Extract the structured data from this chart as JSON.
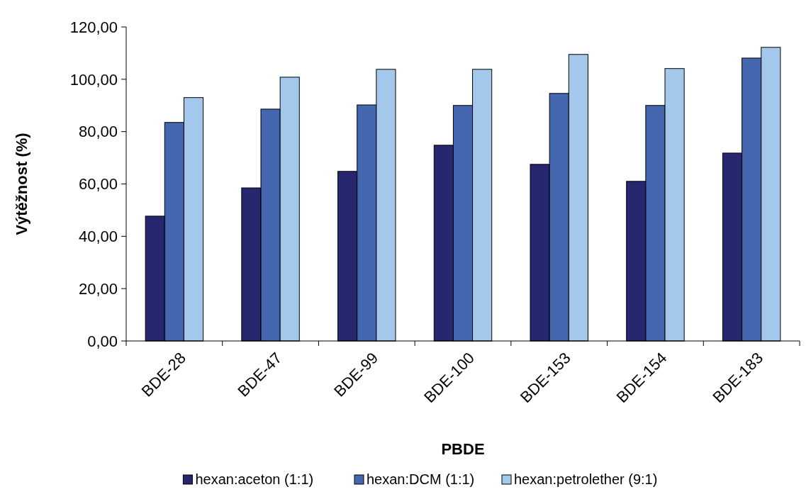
{
  "chart_data": {
    "type": "bar",
    "xlabel": "PBDE",
    "ylabel": "Výtěžnost (%)",
    "categories": [
      "BDE-28",
      "BDE-47",
      "BDE-99",
      "BDE-100",
      "BDE-153",
      "BDE-154",
      "BDE-183"
    ],
    "series": [
      {
        "name": "hexan:aceton (1:1)",
        "color": "#26276e",
        "values": [
          47.7,
          58.5,
          64.8,
          74.8,
          67.5,
          61.0,
          71.8
        ]
      },
      {
        "name": "hexan:DCM (1:1)",
        "color": "#4467b0",
        "values": [
          83.5,
          88.6,
          90.2,
          90.0,
          94.6,
          90.0,
          108.1
        ]
      },
      {
        "name": "hexan:petrolether (9:1)",
        "color": "#a4c8ec",
        "values": [
          93.0,
          100.8,
          103.8,
          103.8,
          109.5,
          104.1,
          112.2
        ]
      }
    ],
    "ylim": [
      0,
      120
    ],
    "yticks": [
      {
        "value": 0,
        "label": "0,00"
      },
      {
        "value": 20,
        "label": "20,00"
      },
      {
        "value": 40,
        "label": "40,00"
      },
      {
        "value": 60,
        "label": "60,00"
      },
      {
        "value": 80,
        "label": "80,00"
      },
      {
        "value": 100,
        "label": "100,00"
      },
      {
        "value": 120,
        "label": "120,00"
      }
    ],
    "grid": false,
    "legend": "bottom"
  }
}
